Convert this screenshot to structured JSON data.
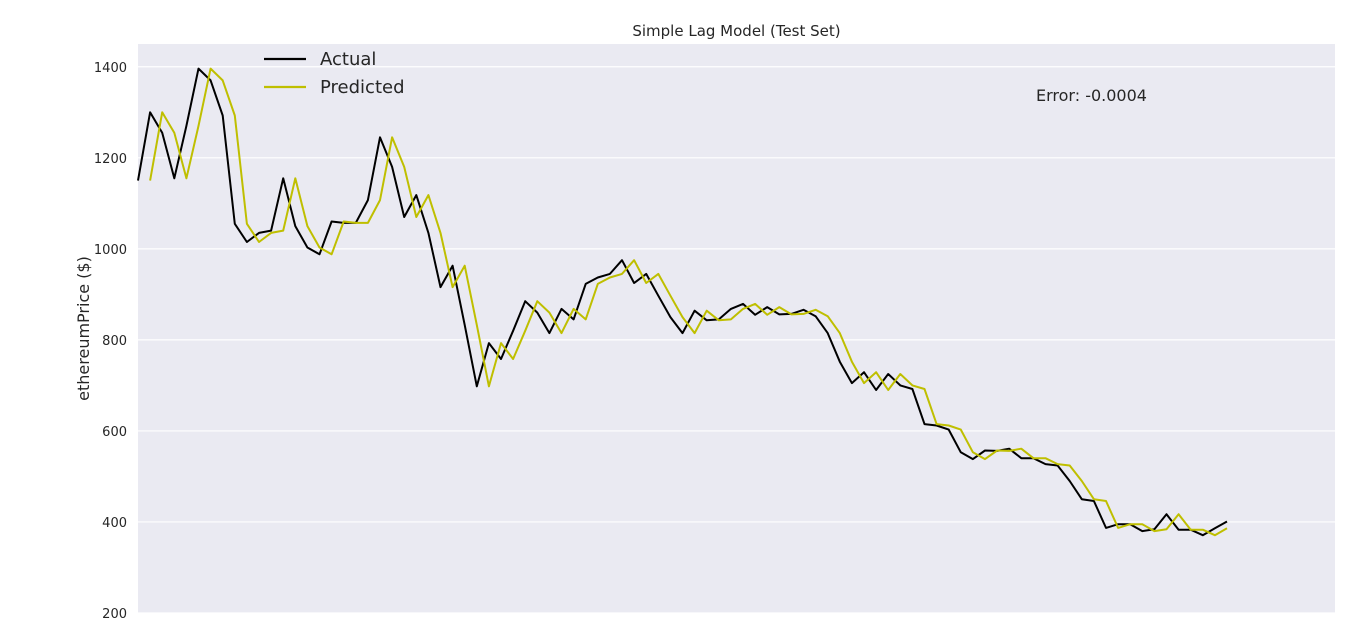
{
  "chart_data": {
    "type": "line",
    "title": "Simple Lag Model (Test Set)",
    "xlabel": "",
    "ylabel": "ethereumPrice ($)",
    "ylim": [
      200,
      1450
    ],
    "yticks": [
      200,
      400,
      600,
      800,
      1000,
      1200,
      1400
    ],
    "grid": true,
    "legend": "top-left",
    "annotation": "Error: -0.0004",
    "series": [
      {
        "name": "Actual",
        "color": "#000000",
        "values": [
          1150,
          1300,
          1255,
          1155,
          1270,
          1396,
          1370,
          1293,
          1055,
          1015,
          1035,
          1040,
          1155,
          1050,
          1003,
          988,
          1060,
          1057,
          1057,
          1107,
          1245,
          1180,
          1070,
          1118,
          1035,
          916,
          963,
          833,
          698,
          793,
          758,
          820,
          885,
          860,
          815,
          868,
          845,
          923,
          937,
          945,
          975,
          925,
          945,
          897,
          850,
          815,
          864,
          843,
          845,
          868,
          879,
          855,
          872,
          856,
          857,
          866,
          852,
          815,
          752,
          705,
          729,
          690,
          725,
          700,
          692,
          615,
          612,
          603,
          553,
          538,
          557,
          556,
          561,
          540,
          540,
          527,
          524,
          490,
          450,
          446,
          387,
          395,
          395,
          380,
          384,
          417,
          383,
          383,
          371,
          386,
          401
        ],
        "x_start": 0
      },
      {
        "name": "Predicted",
        "color": "#bfbf00",
        "values": [
          1150,
          1300,
          1255,
          1155,
          1270,
          1396,
          1370,
          1293,
          1055,
          1015,
          1035,
          1040,
          1155,
          1050,
          1003,
          988,
          1060,
          1057,
          1057,
          1107,
          1245,
          1180,
          1070,
          1118,
          1035,
          916,
          963,
          833,
          698,
          793,
          758,
          820,
          885,
          860,
          815,
          868,
          845,
          923,
          937,
          945,
          975,
          925,
          945,
          897,
          850,
          815,
          864,
          843,
          845,
          868,
          879,
          855,
          872,
          856,
          857,
          866,
          852,
          815,
          752,
          705,
          729,
          690,
          725,
          700,
          692,
          615,
          612,
          603,
          553,
          538,
          557,
          556,
          561,
          540,
          540,
          527,
          524,
          490,
          450,
          446,
          387,
          395,
          395,
          380,
          384,
          417,
          383,
          383,
          371,
          386
        ],
        "x_start": 1
      }
    ]
  }
}
